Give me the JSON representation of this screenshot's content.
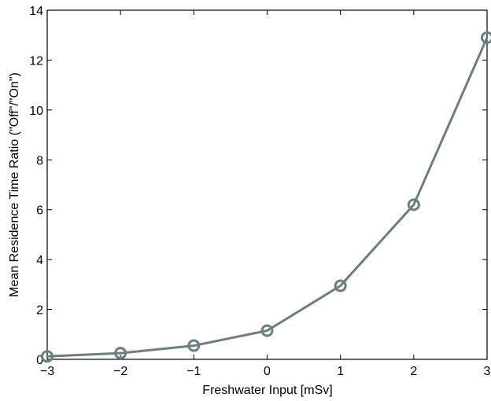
{
  "chart_data": {
    "type": "line",
    "x": [
      -3,
      -2,
      -1,
      0,
      1,
      2,
      3
    ],
    "series": [
      {
        "values": [
          0.12,
          0.25,
          0.55,
          1.15,
          2.95,
          6.2,
          12.9
        ],
        "color": "#6b7f80",
        "marker": "circle-open"
      }
    ],
    "xlabel": "Freshwater Input [mSv]",
    "ylabel": "Mean Residence Time Ratio (\"Off\"/\"On\")",
    "xlim": [
      -3,
      3
    ],
    "ylim": [
      0,
      14
    ],
    "xticks": [
      -3,
      -2,
      -1,
      0,
      1,
      2,
      3
    ],
    "xtick_labels": [
      "−3",
      "−2",
      "−1",
      "0",
      "1",
      "2",
      "3"
    ],
    "yticks": [
      0,
      2,
      4,
      6,
      8,
      10,
      12,
      14
    ],
    "ytick_labels": [
      "0",
      "2",
      "4",
      "6",
      "8",
      "10",
      "12",
      "14"
    ],
    "grid": false,
    "box": true
  }
}
